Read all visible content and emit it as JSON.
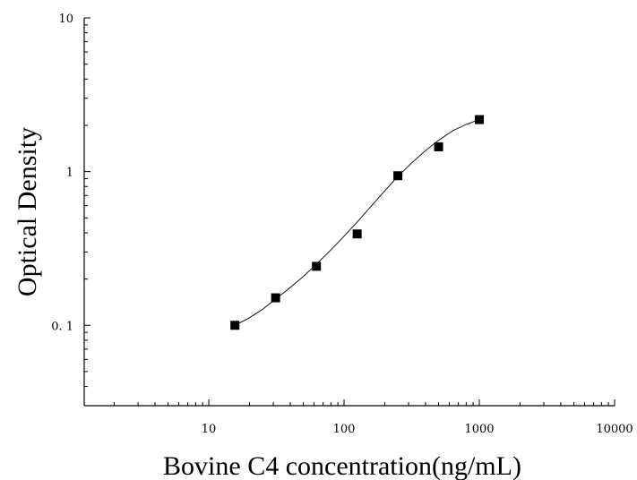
{
  "chart_data": {
    "type": "scatter",
    "xlabel": "Bovine C4 concentration(ng/mL)",
    "ylabel": "Optical Density",
    "x_scale": "log",
    "y_scale": "log",
    "xlim": [
      1.2,
      10000
    ],
    "ylim": [
      0.03,
      10
    ],
    "x_ticks": [
      {
        "value": 10,
        "label": "10"
      },
      {
        "value": 100,
        "label": "100"
      },
      {
        "value": 1000,
        "label": "1000"
      },
      {
        "value": 10000,
        "label": "10000"
      }
    ],
    "y_ticks": [
      {
        "value": 0.1,
        "label": "0. 1"
      },
      {
        "value": 1,
        "label": "1"
      },
      {
        "value": 10,
        "label": "10"
      }
    ],
    "grid": false,
    "legend": "none",
    "marker_color": "#000000",
    "series": [
      {
        "x": [
          15.6,
          31.2,
          62.5,
          125,
          250,
          500,
          1000
        ],
        "y": [
          0.1,
          0.151,
          0.242,
          0.393,
          0.94,
          1.45,
          2.18
        ]
      }
    ],
    "fit_curve": {
      "x": [
        15.6,
        20,
        25,
        31.2,
        40,
        50,
        62.5,
        80,
        100,
        125,
        160,
        200,
        250,
        320,
        400,
        500,
        640,
        800,
        1000
      ],
      "y": [
        0.1,
        0.112,
        0.127,
        0.148,
        0.176,
        0.208,
        0.25,
        0.31,
        0.38,
        0.47,
        0.6,
        0.75,
        0.93,
        1.15,
        1.37,
        1.6,
        1.85,
        2.03,
        2.18
      ]
    }
  }
}
